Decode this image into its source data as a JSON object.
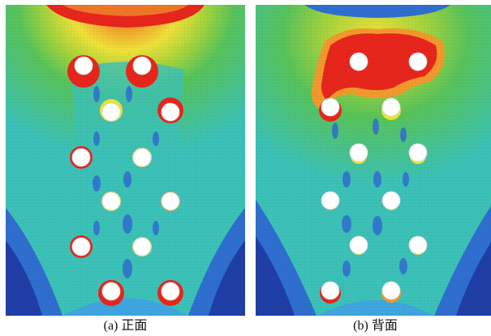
{
  "figure": {
    "panels": [
      {
        "id": "a",
        "caption": "(a) 正面",
        "hotspot": "bottom"
      },
      {
        "id": "b",
        "caption": "(b) 背面",
        "hotspot": "top"
      }
    ]
  },
  "colors": {
    "deep_blue": "#1f3fa8",
    "blue": "#2f6fd0",
    "light_blue": "#3fa6e0",
    "cyan": "#3cc2b8",
    "green": "#58c45a",
    "yellow_green": "#a6d43c",
    "yellow": "#f0e23a",
    "orange": "#f29a2c",
    "red": "#e8261c",
    "hole": "#ffffff"
  }
}
